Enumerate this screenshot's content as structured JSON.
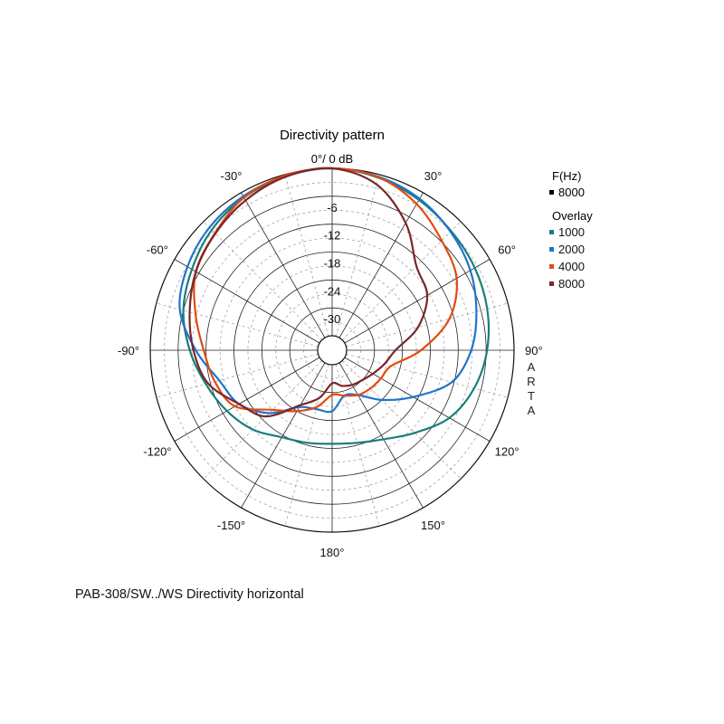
{
  "chart_data": {
    "type": "polar-line",
    "title": "Directivity pattern",
    "top_label": "0°/ 0 dB",
    "radial_unit": "dB",
    "r_range": [
      -36,
      0
    ],
    "ring_labels": [
      "-6",
      "-12",
      "-18",
      "-24",
      "-30"
    ],
    "ring_values": [
      -6,
      -12,
      -18,
      -24,
      -30
    ],
    "angle_labels": [
      {
        "deg": -30,
        "text": "-30°"
      },
      {
        "deg": 30,
        "text": "30°"
      },
      {
        "deg": -60,
        "text": "-60°"
      },
      {
        "deg": 60,
        "text": "60°"
      },
      {
        "deg": -90,
        "text": "-90°"
      },
      {
        "deg": 90,
        "text": "90°"
      },
      {
        "deg": -120,
        "text": "-120°"
      },
      {
        "deg": 120,
        "text": "120°"
      },
      {
        "deg": -150,
        "text": "-150°"
      },
      {
        "deg": 150,
        "text": "150°"
      },
      {
        "deg": 180,
        "text": "180°"
      }
    ],
    "side_watermark": "ARTA",
    "legend": {
      "freq_heading": "F(Hz)",
      "freq_item": {
        "label": "8000",
        "color": "#000000"
      },
      "overlay_heading": "Overlay",
      "overlay_items": [
        {
          "label": "1000",
          "color": "#177f7a"
        },
        {
          "label": "2000",
          "color": "#1f74c9"
        },
        {
          "label": "4000",
          "color": "#e24a12"
        },
        {
          "label": "8000",
          "color": "#7a2628"
        }
      ]
    },
    "angles": [
      0,
      15,
      30,
      45,
      60,
      75,
      90,
      105,
      120,
      135,
      150,
      165,
      180,
      195,
      210,
      225,
      240,
      255,
      270,
      285,
      300,
      315,
      330,
      345
    ],
    "series": [
      {
        "label": "1000",
        "color": "#177f7a",
        "values": [
          0,
          -0.7,
          -1.8,
          -2.9,
          -3.7,
          -4.6,
          -5.8,
          -7.5,
          -10,
          -14,
          -17,
          -18.5,
          -19,
          -18.5,
          -17.5,
          -15,
          -13,
          -11,
          -8.5,
          -6,
          -4.3,
          -2.5,
          -1.2,
          -0.4
        ]
      },
      {
        "label": "2000",
        "color": "#1f74c9",
        "values": [
          0,
          -0.5,
          -1.5,
          -3.1,
          -4.8,
          -7,
          -9.2,
          -12.5,
          -19,
          -24,
          -28,
          -29,
          -26,
          -26,
          -25,
          -20,
          -16,
          -14,
          -9.8,
          -5.2,
          -3.2,
          -1.8,
          -0.9,
          -0.3
        ]
      },
      {
        "label": "4000",
        "color": "#e24a12",
        "values": [
          0,
          -0.6,
          -2.8,
          -5.8,
          -8.2,
          -13,
          -20,
          -26,
          -27,
          -27.5,
          -28,
          -29,
          -29.5,
          -26.5,
          -24,
          -21,
          -15,
          -13,
          -11.5,
          -8.7,
          -5.3,
          -3.5,
          -1.2,
          -0.2
        ]
      },
      {
        "label": "8000",
        "color": "#7a2628",
        "values": [
          0,
          -2.2,
          -7.5,
          -13.5,
          -15.5,
          -20,
          -25.5,
          -27.5,
          -29,
          -30,
          -30.5,
          -31.2,
          -32,
          -28.5,
          -25.5,
          -19,
          -16,
          -11.5,
          -9.3,
          -7.4,
          -5.3,
          -3.6,
          -1.9,
          -0.5
        ]
      }
    ]
  },
  "caption": "PAB-308/SW../WS  Directivity horizontal"
}
